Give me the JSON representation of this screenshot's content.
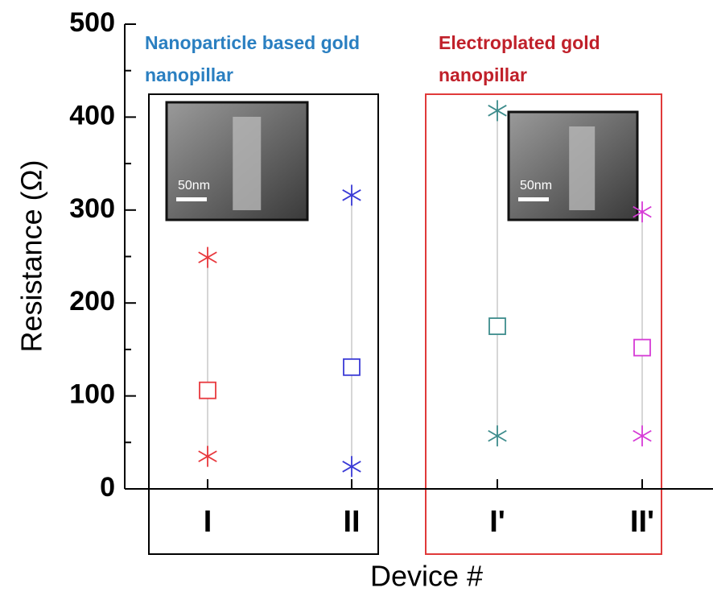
{
  "chart_data": {
    "type": "range_scatter",
    "ylabel": "Resistance (Ω)",
    "xlabel": "Device #",
    "categories": [
      "I",
      "II",
      "I'",
      "II'"
    ],
    "colors": [
      "#e8383d",
      "#3a3ad6",
      "#3d8c8c",
      "#d63ad6"
    ],
    "max": [
      249,
      316,
      407,
      298
    ],
    "mean": [
      106,
      131,
      175,
      152
    ],
    "min": [
      35,
      24,
      57,
      57
    ],
    "ylim": [
      0,
      500
    ],
    "yticks": [
      0,
      100,
      200,
      300,
      400,
      500
    ],
    "yminorticks": [
      50,
      150,
      250,
      350,
      450
    ],
    "groups": [
      {
        "lines": [
          "Nanoparticle based gold",
          "nanopillar"
        ],
        "color": "#2a7fc1",
        "box_color": "#000000",
        "inset_label": "50nm"
      },
      {
        "lines": [
          "Electroplated gold",
          "nanopillar"
        ],
        "color": "#c0202a",
        "box_color": "#e03a3a",
        "inset_label": "50nm"
      }
    ]
  }
}
